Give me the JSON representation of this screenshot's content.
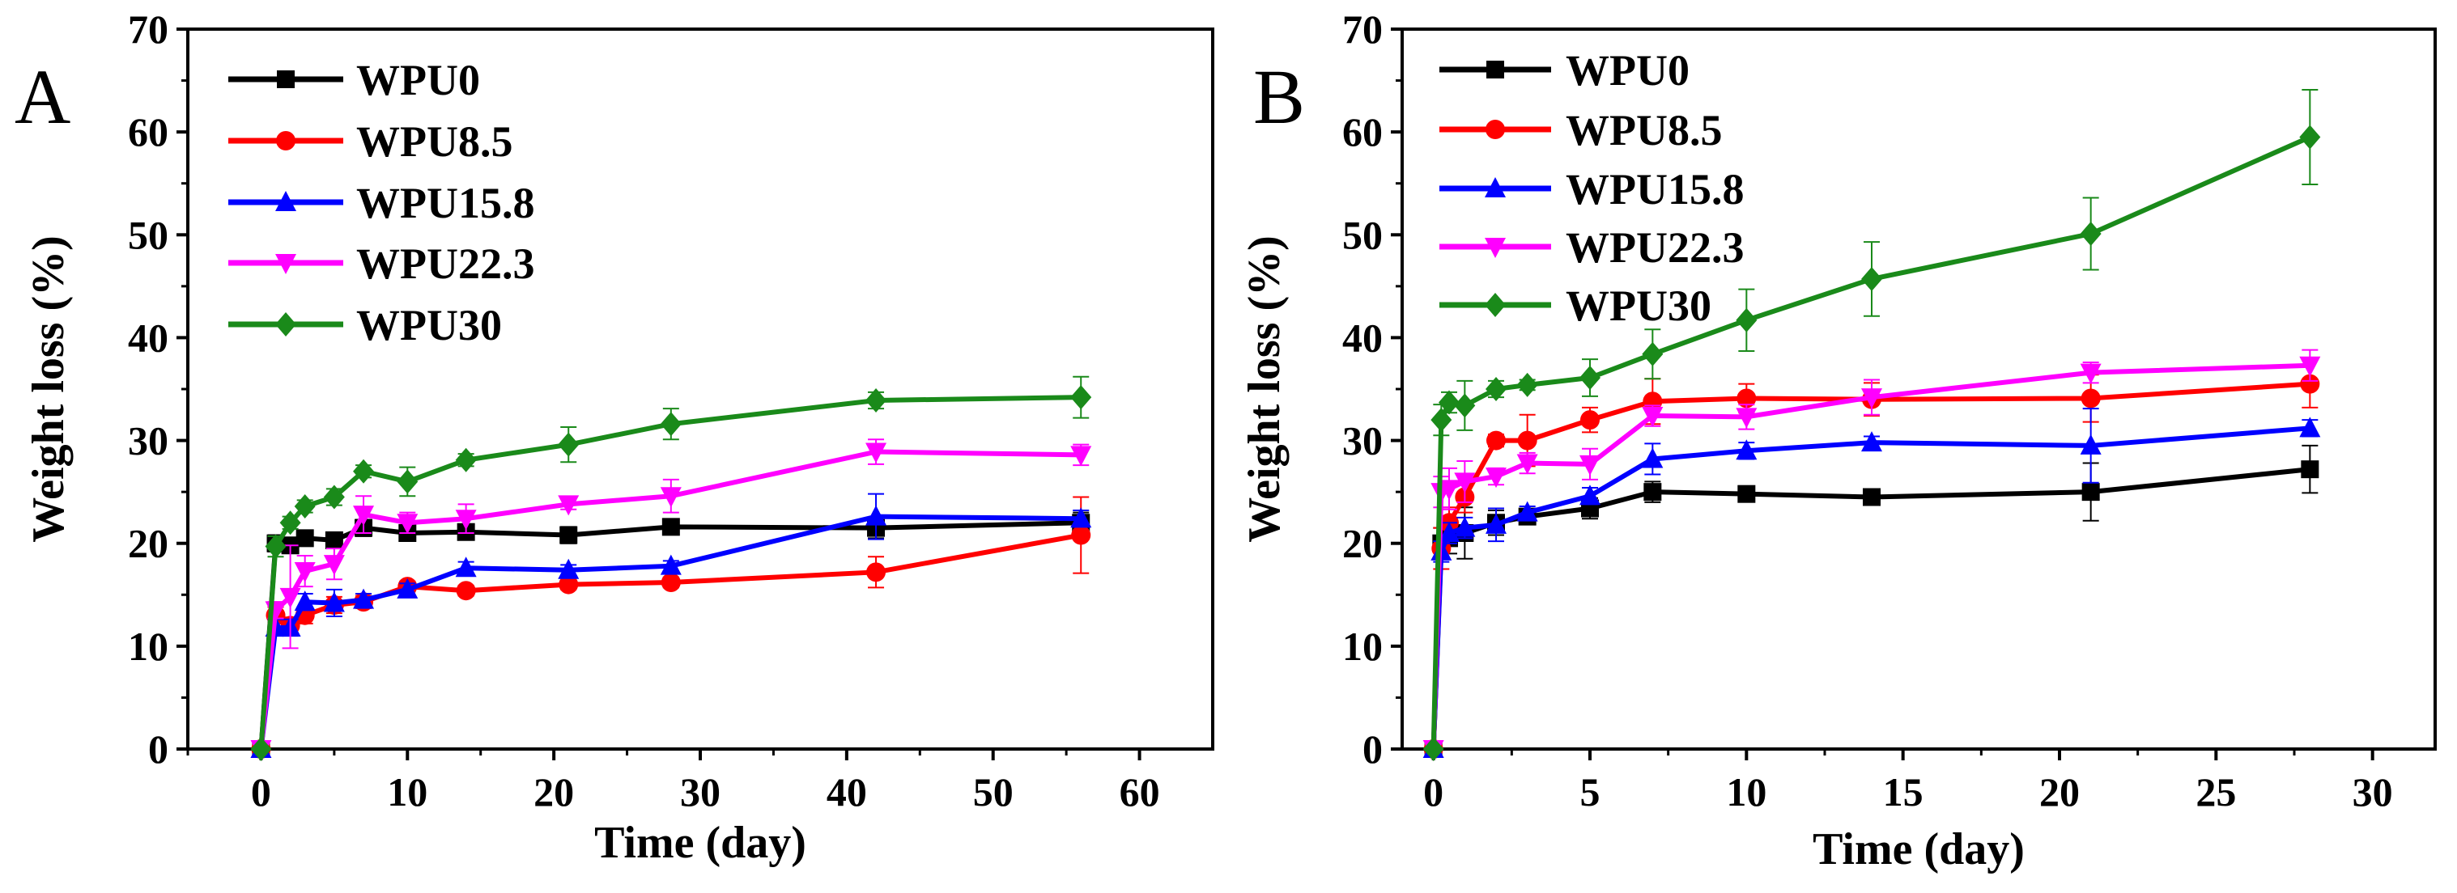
{
  "chart_data": [
    {
      "type": "line",
      "panel_label": "A",
      "xlabel": "Time (day)",
      "ylabel": "Weight loss (%)",
      "xlim": [
        -5,
        65
      ],
      "ylim": [
        0,
        70
      ],
      "xticks": [
        "0",
        "10",
        "20",
        "30",
        "40",
        "50",
        "60"
      ],
      "yticks": [
        "0",
        "10",
        "20",
        "30",
        "40",
        "50",
        "60",
        "70"
      ],
      "legend_position": "top-left",
      "x": [
        0,
        1,
        2,
        3,
        5,
        7,
        10,
        14,
        21,
        28,
        42,
        56
      ],
      "series": [
        {
          "name": "WPU0",
          "color": "#000000",
          "marker": "square",
          "values": [
            0,
            20,
            19.8,
            20.5,
            20.3,
            21.5,
            21,
            21.1,
            20.8,
            21.6,
            21.5,
            22
          ],
          "errors": [
            0,
            0.8,
            0.6,
            0.5,
            0.5,
            0.8,
            0.5,
            0.5,
            0.8,
            0.5,
            1.0,
            1.0
          ]
        },
        {
          "name": "WPU8.5",
          "color": "#ff0000",
          "marker": "circle",
          "values": [
            0,
            13,
            12,
            13,
            14,
            14.3,
            15.8,
            15.4,
            16,
            16.2,
            17.2,
            20.8
          ],
          "errors": [
            0,
            0.8,
            0.8,
            0.8,
            0.8,
            0.6,
            0.5,
            0.5,
            0.5,
            0.5,
            1.5,
            3.7
          ]
        },
        {
          "name": "WPU15.8",
          "color": "#0000ff",
          "marker": "triangle-up",
          "values": [
            0,
            11.8,
            11.8,
            14.3,
            14.2,
            14.5,
            15.5,
            17.6,
            17.4,
            17.8,
            22.6,
            22.4
          ],
          "errors": [
            0,
            0.8,
            0.8,
            0.8,
            1.3,
            0.6,
            0.6,
            0.6,
            0.5,
            0.5,
            2.2,
            0.8
          ]
        },
        {
          "name": "WPU22.3",
          "color": "#ff00ff",
          "marker": "triangle-down",
          "values": [
            0,
            13.5,
            14.8,
            17.3,
            18,
            22.8,
            22,
            22.4,
            23.8,
            24.6,
            28.9,
            28.6
          ],
          "errors": [
            0,
            0.8,
            5,
            1.5,
            1.5,
            1.8,
            1.0,
            1.4,
            0.5,
            1.6,
            1.2,
            1.0
          ]
        },
        {
          "name": "WPU30",
          "color": "#1a8a1a",
          "marker": "diamond",
          "values": [
            0,
            19.7,
            22,
            23.6,
            24.5,
            27,
            26,
            28.1,
            29.6,
            31.6,
            33.9,
            34.2
          ],
          "errors": [
            0,
            1.0,
            0.6,
            0.6,
            0.8,
            0.6,
            1.4,
            0.6,
            1.7,
            1.5,
            0.8,
            2.0
          ]
        }
      ]
    },
    {
      "type": "line",
      "panel_label": "B",
      "xlabel": "Time (day)",
      "ylabel": "Weight loss (%)",
      "xlim": [
        -1,
        32
      ],
      "ylim": [
        0,
        70
      ],
      "xticks": [
        "0",
        "5",
        "10",
        "15",
        "20",
        "25",
        "30"
      ],
      "yticks": [
        "0",
        "10",
        "20",
        "30",
        "40",
        "50",
        "60",
        "70"
      ],
      "legend_position": "top-left",
      "x": [
        0,
        0.25,
        0.5,
        1,
        2,
        3,
        5,
        7,
        10,
        14,
        21,
        28
      ],
      "series": [
        {
          "name": "WPU0",
          "color": "#000000",
          "marker": "square",
          "values": [
            0,
            20,
            20.5,
            21,
            22,
            22.6,
            23.4,
            25,
            24.8,
            24.5,
            25,
            27.2
          ],
          "errors": [
            0,
            1.5,
            1.5,
            2.5,
            1.2,
            0.6,
            1.0,
            1.0,
            0.5,
            0.6,
            2.8,
            2.3
          ]
        },
        {
          "name": "WPU8.5",
          "color": "#ff0000",
          "marker": "circle",
          "values": [
            0,
            19.5,
            22,
            24.5,
            30,
            30,
            32,
            33.8,
            34.1,
            34,
            34.1,
            35.5
          ],
          "errors": [
            0,
            2,
            1.5,
            1.5,
            0.6,
            2.5,
            1.2,
            2.2,
            1.4,
            1.6,
            2.3,
            2.3
          ]
        },
        {
          "name": "WPU15.8",
          "color": "#0000ff",
          "marker": "triangle-up",
          "values": [
            0,
            19.2,
            21,
            21.5,
            21.8,
            23,
            24.6,
            28.2,
            29,
            29.8,
            29.5,
            31.2
          ],
          "errors": [
            0,
            1.0,
            1.0,
            1.0,
            1.6,
            0.6,
            0.8,
            1.5,
            0.8,
            0.6,
            3.6,
            0.8
          ]
        },
        {
          "name": "WPU22.3",
          "color": "#ff00ff",
          "marker": "triangle-down",
          "values": [
            0,
            25,
            25.3,
            26,
            26.5,
            27.8,
            27.7,
            32.4,
            32.3,
            34.2,
            36.6,
            37.3
          ],
          "errors": [
            0,
            1.5,
            2,
            2,
            0.8,
            1.0,
            1.5,
            1.0,
            1.2,
            1.7,
            1.0,
            1.5
          ]
        },
        {
          "name": "WPU30",
          "color": "#1a8a1a",
          "marker": "diamond",
          "values": [
            0,
            32,
            33.7,
            33.4,
            35,
            35.4,
            36.1,
            38.4,
            41.7,
            45.7,
            50.1,
            59.5
          ],
          "errors": [
            0,
            1.5,
            1.0,
            2.4,
            0.8,
            0.5,
            1.8,
            2.4,
            3.0,
            3.6,
            3.5,
            4.6
          ]
        }
      ]
    }
  ]
}
